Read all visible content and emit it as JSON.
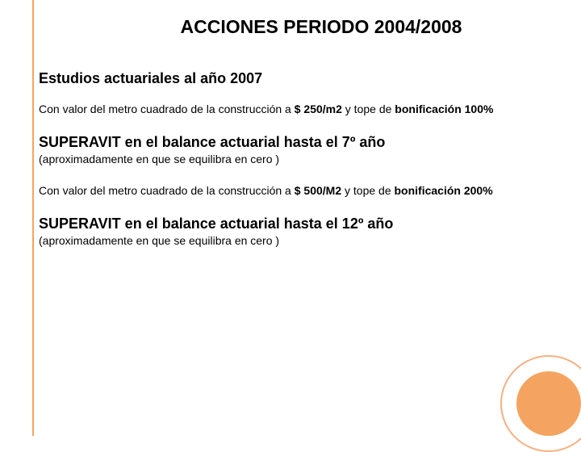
{
  "styling": {
    "background_color": "#ffffff",
    "accent_color": "#f4a460",
    "circle_outer_border": "#f4b183",
    "circle_inner_fill": "#f4a460",
    "vertical_line_color": "#f4a460",
    "text_color": "#000000",
    "font_family": "Verdana",
    "title_fontsize": 23,
    "subtitle_fontsize": 18,
    "body_fontsize": 14,
    "statement_fontsize": 18
  },
  "title": "ACCIONES PERIODO 2004/2008",
  "subtitle": "Estudios actuariales al año 2007",
  "block1": {
    "para_open": "Con valor del metro cuadrado de la construcción a ",
    "para_bold1": "$ 250/m2",
    "para_mid": " y tope de ",
    "para_bold2": "bonificación 100%",
    "statement": "SUPERAVIT en el balance actuarial hasta el 7º año",
    "approx": "(aproximadamente en que se equilibra en cero )"
  },
  "block2": {
    "para_open": "Con valor del metro cuadrado de la construcción a ",
    "para_bold1": "$ 500/M2",
    "para_mid": " y tope de ",
    "para_bold2": "bonificación 200%",
    "statement": "SUPERAVIT en el balance actuarial hasta el 12º año",
    "approx": "(aproximadamente en que se equilibra en cero )"
  }
}
